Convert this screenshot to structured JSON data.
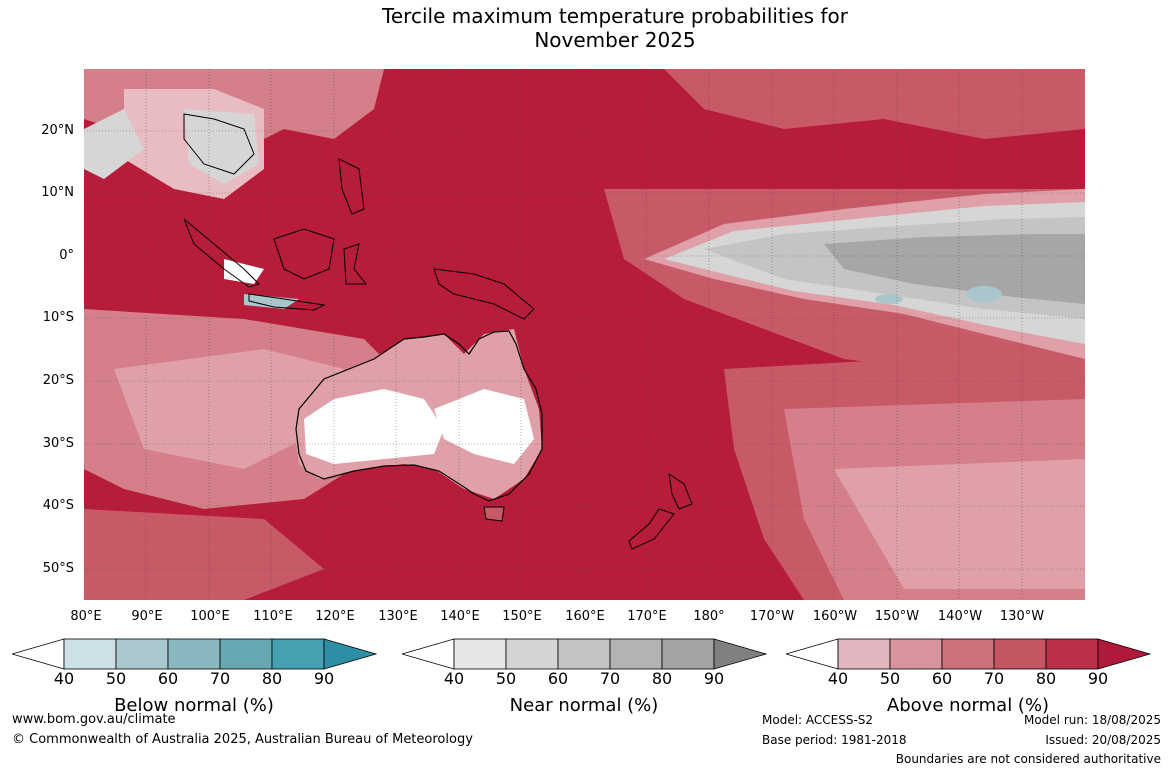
{
  "title": {
    "line1": "Tercile maximum temperature probabilities for",
    "line2": "November 2025"
  },
  "map": {
    "lat_labels": [
      "20°N",
      "10°N",
      "0°",
      "10°S",
      "20°S",
      "30°S",
      "40°S",
      "50°S"
    ],
    "lon_labels": [
      "80°E",
      "90°E",
      "100°E",
      "110°E",
      "120°E",
      "130°E",
      "140°E",
      "150°E",
      "160°E",
      "170°E",
      "180°",
      "170°W",
      "160°W",
      "150°W",
      "140°W",
      "130°W"
    ],
    "colors": {
      "above_90": "#b71c3a",
      "above_80": "#bd2d48",
      "above_70": "#c85a68",
      "above_60": "#d57f8a",
      "above_50": "#e0a0a8",
      "above_40": "#e8bcc2",
      "near_normal_light": "#d6d6d6",
      "near_normal_mid": "#c4c4c4",
      "near_normal_dark": "#a6a6a6",
      "below_normal": "#a8c6cc",
      "white": "#ffffff",
      "coastline": "#000000",
      "boundaries": "#888888"
    }
  },
  "colorbars": [
    {
      "title": "Below normal (%)",
      "ticks": [
        "40",
        "50",
        "60",
        "70",
        "80",
        "90"
      ],
      "colors": [
        "#ffffff",
        "#cce0e6",
        "#a9c7cc",
        "#88b7bf",
        "#67a7b2",
        "#45a0b2",
        "#2e8ea3"
      ]
    },
    {
      "title": "Near normal (%)",
      "ticks": [
        "40",
        "50",
        "60",
        "70",
        "80",
        "90"
      ],
      "colors": [
        "#ffffff",
        "#e6e6e6",
        "#d4d4d4",
        "#c3c3c3",
        "#b3b3b3",
        "#a3a3a3",
        "#808080"
      ]
    },
    {
      "title": "Above normal (%)",
      "ticks": [
        "40",
        "50",
        "60",
        "70",
        "80",
        "90"
      ],
      "colors": [
        "#ffffff",
        "#e1b5bd",
        "#d8939c",
        "#cd727c",
        "#c45563",
        "#bb2f48",
        "#b0193a"
      ]
    }
  ],
  "footer": {
    "website": "www.bom.gov.au/climate",
    "copyright": "© Commonwealth of Australia 2025, Australian Bureau of Meteorology",
    "model": "Model: ACCESS-S2",
    "base_period": "Base period: 1981-2018",
    "model_run": "Model run: 18/08/2025",
    "issued": "Issued: 20/08/2025",
    "boundaries_note": "Boundaries are not considered authoritative"
  }
}
